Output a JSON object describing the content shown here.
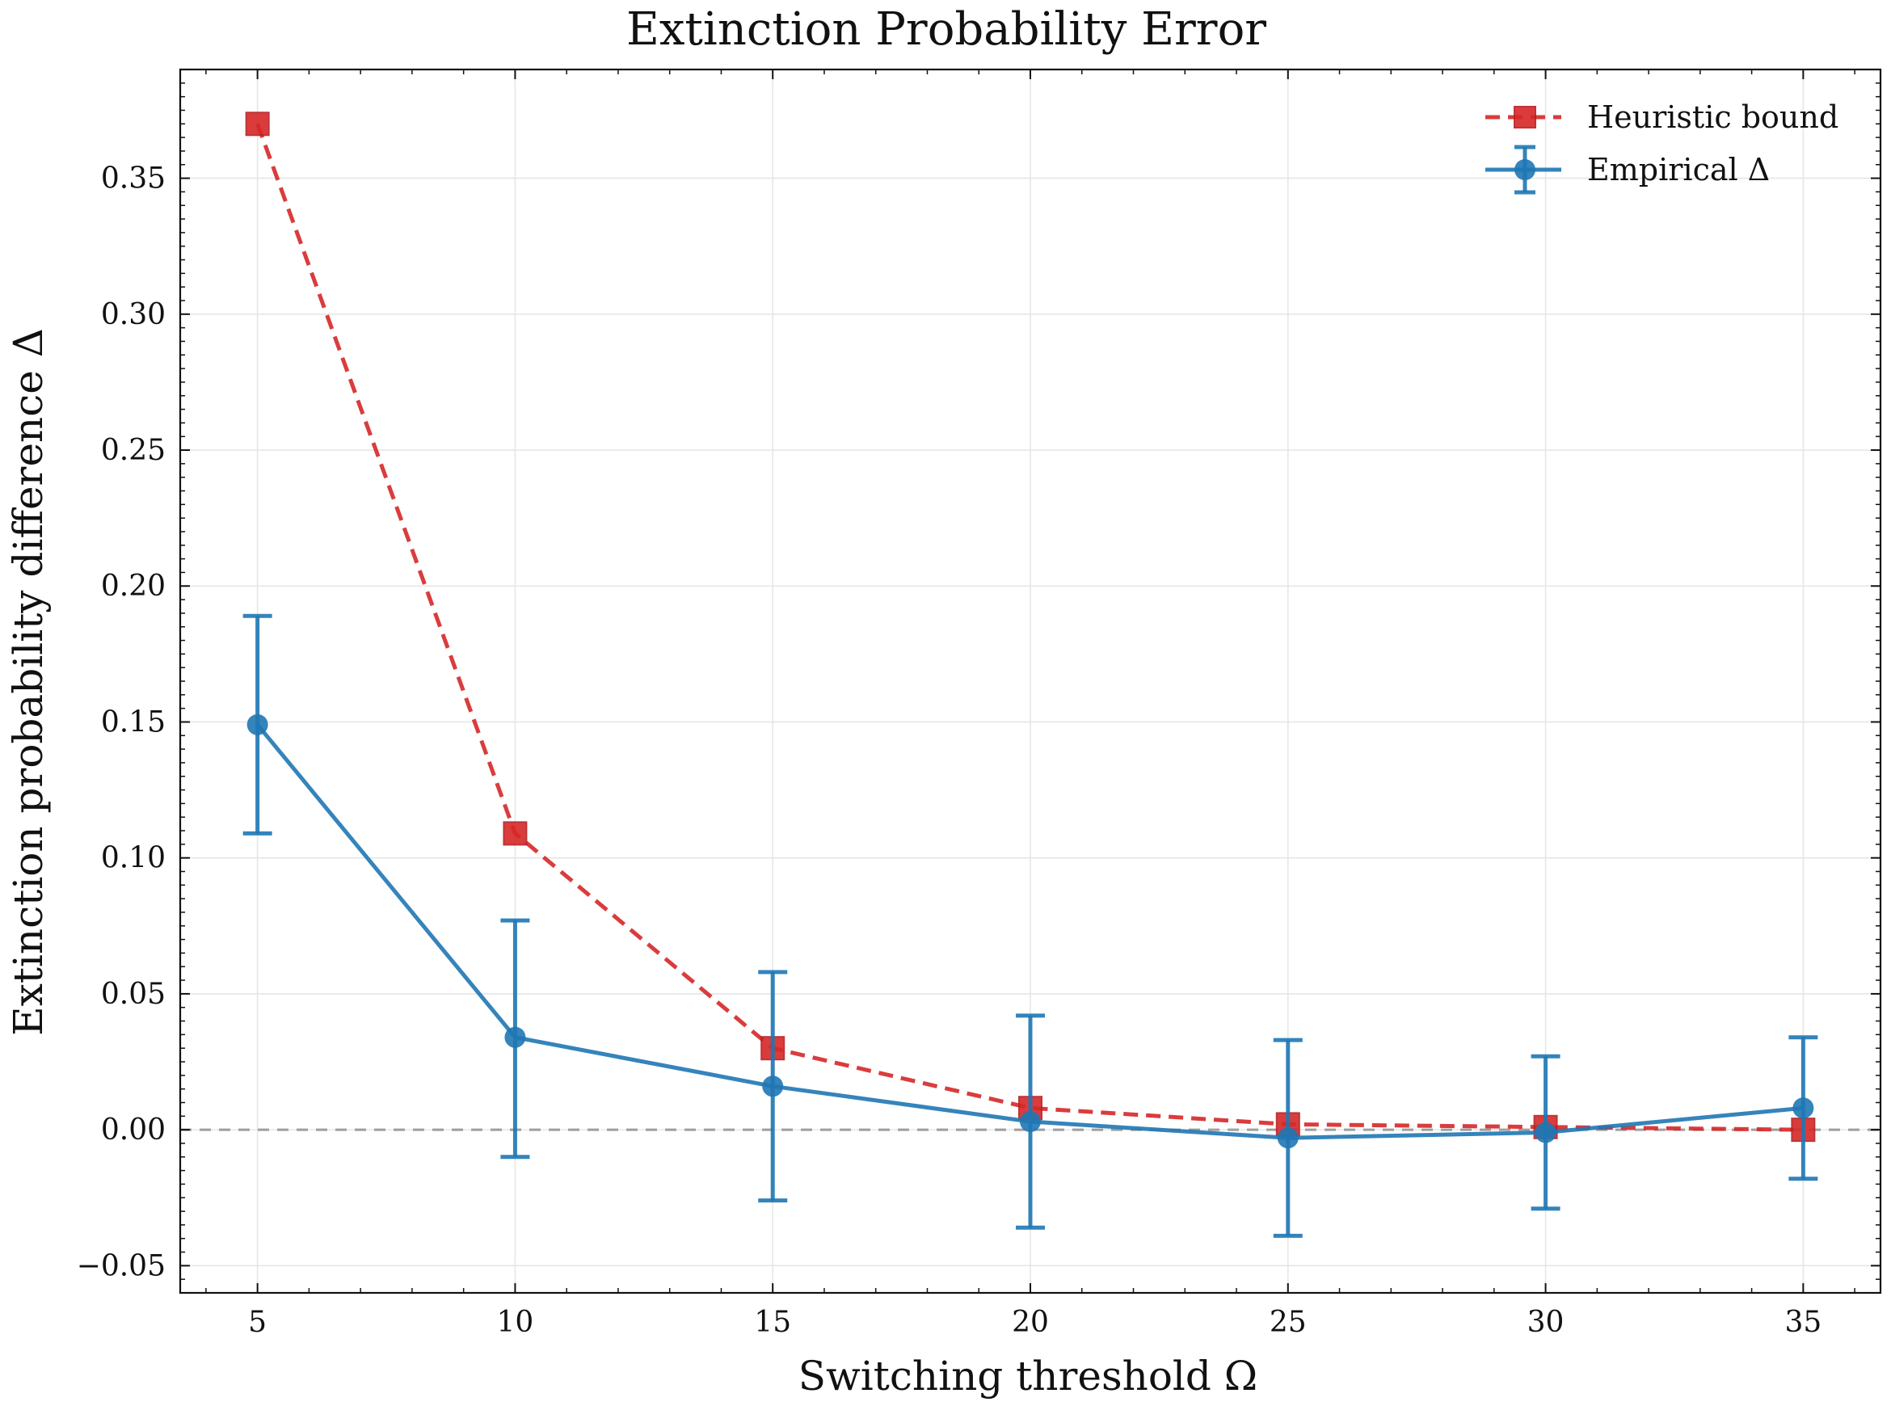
{
  "chart_data": {
    "type": "line",
    "title": "Extinction Probability Error",
    "xlabel": "Switching threshold Ω",
    "ylabel": "Extinction probability difference Δ",
    "xlim": [
      3.5,
      36.5
    ],
    "ylim": [
      -0.06,
      0.39
    ],
    "x": [
      5,
      10,
      15,
      20,
      25,
      30,
      35
    ],
    "xticks": [
      5,
      10,
      15,
      20,
      25,
      30,
      35
    ],
    "xtick_labels": [
      "5",
      "10",
      "15",
      "20",
      "25",
      "30",
      "35"
    ],
    "yticks": [
      -0.05,
      0.0,
      0.05,
      0.1,
      0.15,
      0.2,
      0.25,
      0.3,
      0.35
    ],
    "ytick_labels": [
      "−0.05",
      "0.00",
      "0.05",
      "0.10",
      "0.15",
      "0.20",
      "0.25",
      "0.30",
      "0.35"
    ],
    "reference_line": {
      "y": 0.0,
      "color": "#9e9e9e"
    },
    "series": [
      {
        "name": "Heuristic bound",
        "color": "#d62728",
        "line_style": "dashed",
        "marker": "square",
        "values": [
          0.37,
          0.109,
          0.03,
          0.008,
          0.002,
          0.001,
          0.0
        ]
      },
      {
        "name": "Empirical Δ",
        "color": "#1f77b4",
        "line_style": "solid",
        "marker": "circle",
        "values": [
          0.149,
          0.034,
          0.016,
          0.003,
          -0.003,
          -0.001,
          0.008
        ],
        "error_low": [
          0.109,
          -0.01,
          -0.026,
          -0.036,
          -0.039,
          -0.029,
          -0.018
        ],
        "error_high": [
          0.189,
          0.077,
          0.058,
          0.042,
          0.033,
          0.027,
          0.034
        ]
      }
    ],
    "legend": {
      "position": "top-right",
      "entries": [
        "Heuristic bound",
        "Empirical Δ"
      ]
    },
    "grid": true
  }
}
